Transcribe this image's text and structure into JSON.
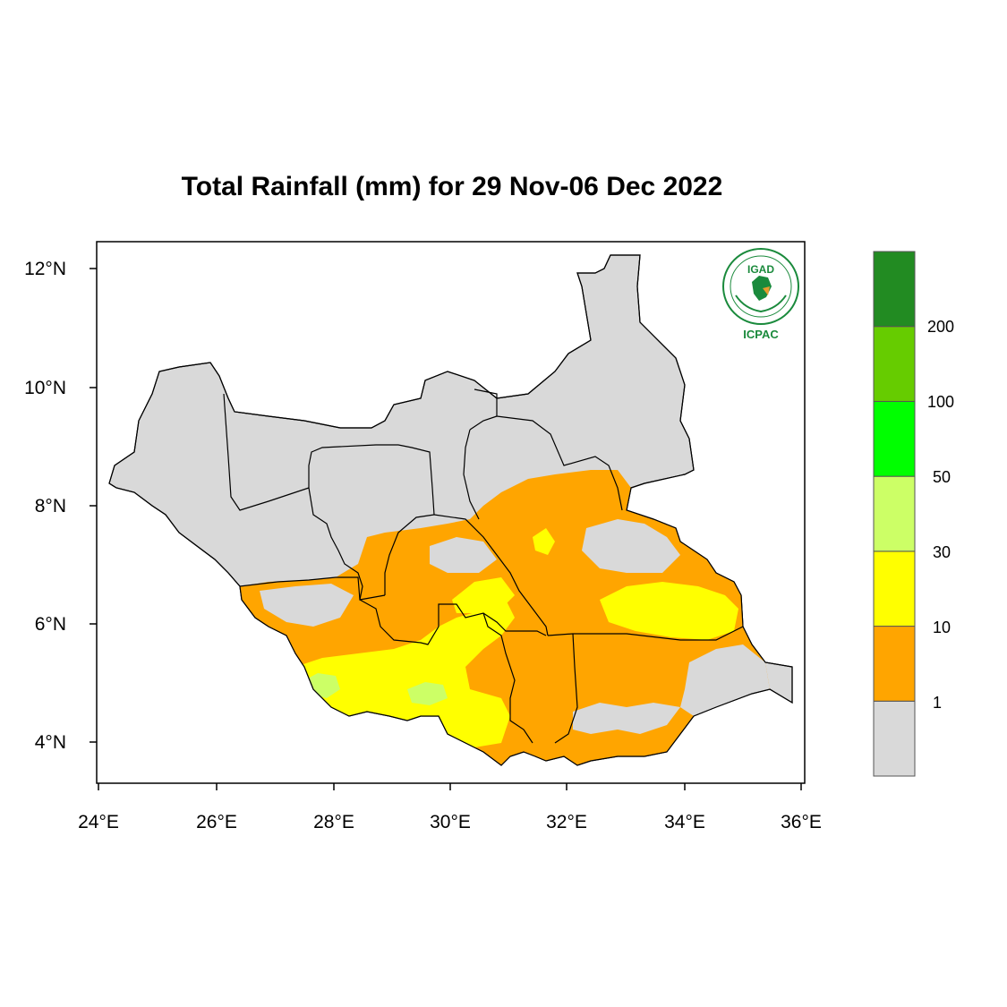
{
  "title": "Total Rainfall (mm) for 29 Nov-06 Dec 2022",
  "axes": {
    "x_ticks": [
      "24°E",
      "26°E",
      "28°E",
      "30°E",
      "32°E",
      "34°E",
      "36°E"
    ],
    "y_ticks": [
      "12°N",
      "10°N",
      "8°N",
      "6°N",
      "4°N"
    ]
  },
  "colorbar": {
    "labels": [
      "1",
      "10",
      "30",
      "50",
      "100",
      "200"
    ],
    "colors": [
      "#d9d9d9",
      "#ffa500",
      "#ffff00",
      "#ccff66",
      "#00ff00",
      "#66cc00",
      "#228b22"
    ]
  },
  "logo": {
    "top_text": "IGAD",
    "bottom_text": "ICPAC"
  },
  "legend_colors": {
    "land_dry": "#d9d9d9",
    "band_1_10": "#ffa500",
    "band_10_30": "#ffff00",
    "band_30_50": "#ccff66"
  }
}
